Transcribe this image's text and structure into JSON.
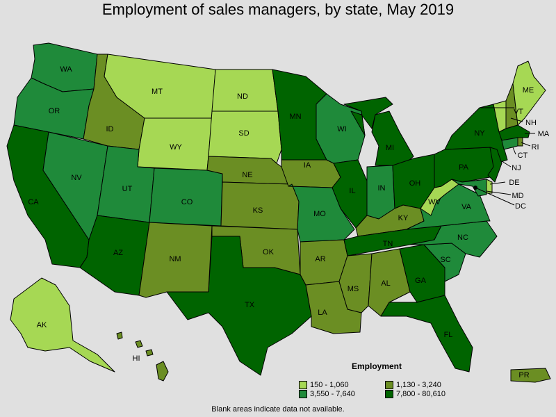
{
  "title": "Employment of sales managers, by state, May 2019",
  "legend": {
    "title": "Employment",
    "classes": [
      {
        "label": "150 - 1,060",
        "color": "#a6d854"
      },
      {
        "label": "1,130 - 3,240",
        "color": "#6b8e23"
      },
      {
        "label": "3,550 - 7,640",
        "color": "#1f8a3a"
      },
      {
        "label": "7,800 - 80,610",
        "color": "#006400"
      }
    ]
  },
  "footnote": "Blank areas indicate data not available.",
  "states": {
    "WA": "WA",
    "OR": "OR",
    "CA": "CA",
    "NV": "NV",
    "ID": "ID",
    "MT": "MT",
    "WY": "WY",
    "UT": "UT",
    "AZ": "AZ",
    "CO": "CO",
    "NM": "NM",
    "ND": "ND",
    "SD": "SD",
    "NE": "NE",
    "KS": "KS",
    "OK": "OK",
    "TX": "TX",
    "MN": "MN",
    "IA": "IA",
    "MO": "MO",
    "AR": "AR",
    "LA": "LA",
    "WI": "WI",
    "IL": "IL",
    "MI": "MI",
    "IN": "IN",
    "OH": "OH",
    "KY": "KY",
    "TN": "TN",
    "MS": "MS",
    "AL": "AL",
    "GA": "GA",
    "FL": "FL",
    "SC": "SC",
    "NC": "NC",
    "VA": "VA",
    "WV": "WV",
    "PA": "PA",
    "NY": "NY",
    "ME": "ME",
    "VT": "VT",
    "NH": "NH",
    "MA": "MA",
    "RI": "RI",
    "CT": "CT",
    "NJ": "NJ",
    "DE": "DE",
    "MD": "MD",
    "DC": "DC",
    "AK": "AK",
    "HI": "HI",
    "PR": "PR"
  }
}
